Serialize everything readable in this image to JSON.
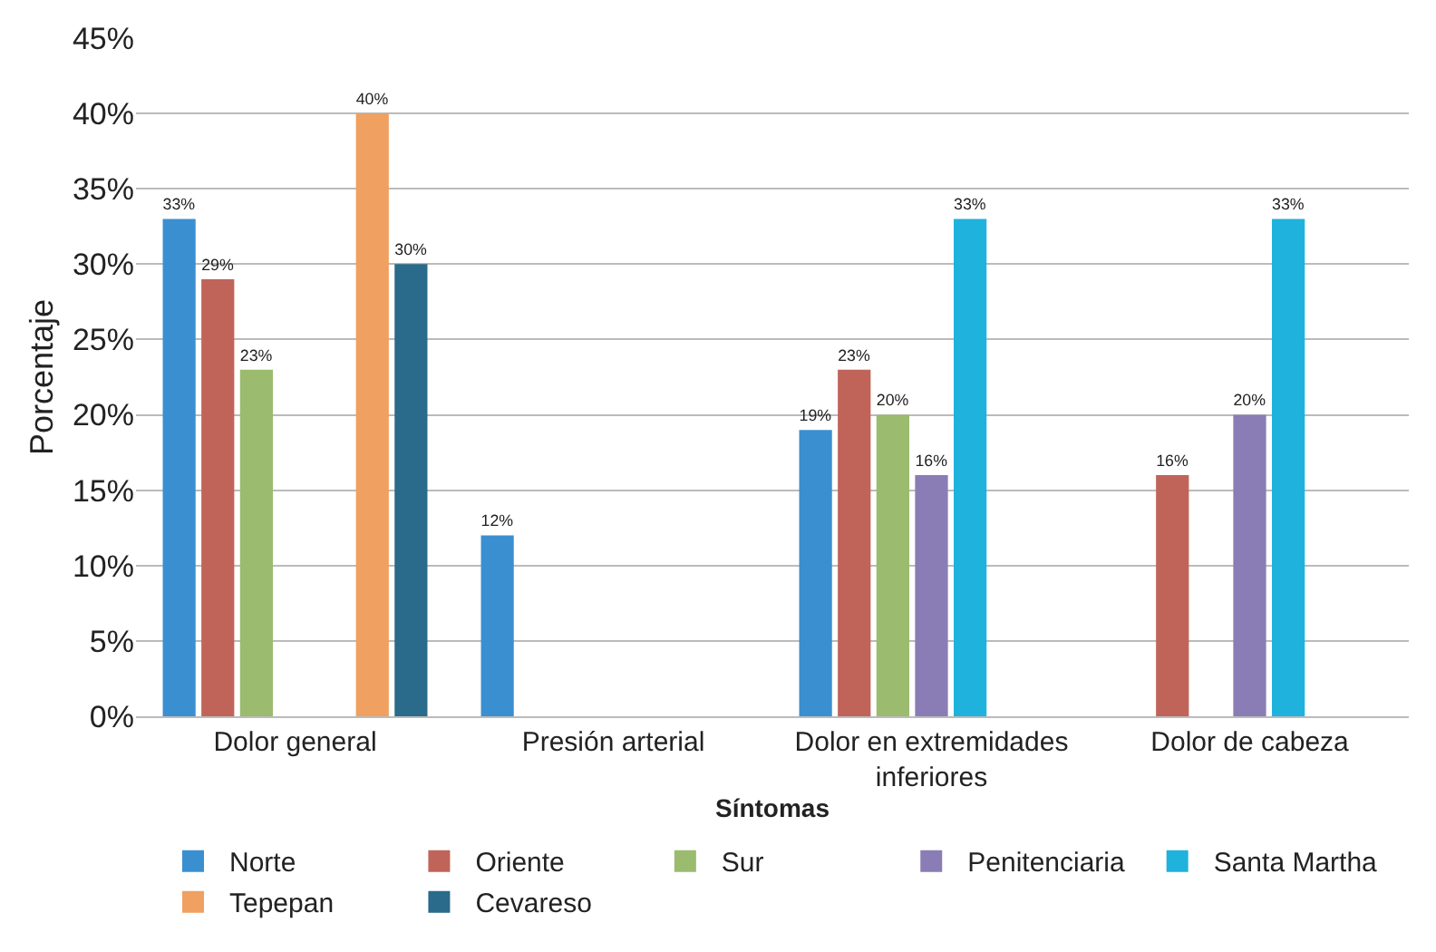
{
  "chart_data": {
    "type": "bar",
    "xlabel": "Síntomas",
    "ylabel": "Porcentaje",
    "categories": [
      "Dolor general",
      "Presión arterial",
      "Dolor en extremidades inferiores",
      "Dolor de cabeza"
    ],
    "series": [
      {
        "name": "Norte",
        "color": "#3a8fd0",
        "values": [
          33,
          12,
          19,
          null
        ],
        "value_labels": [
          "33%",
          "12%",
          "19%",
          null
        ]
      },
      {
        "name": "Oriente",
        "color": "#c0645a",
        "values": [
          29,
          null,
          23,
          16
        ],
        "value_labels": [
          "29%",
          null,
          "23%",
          "16%"
        ]
      },
      {
        "name": "Sur",
        "color": "#9bbb6e",
        "values": [
          23,
          null,
          20,
          null
        ],
        "value_labels": [
          "23%",
          null,
          "20%",
          null
        ]
      },
      {
        "name": "Penitenciaria",
        "color": "#8a7db5",
        "values": [
          null,
          null,
          16,
          20
        ],
        "value_labels": [
          null,
          null,
          "16%",
          "20%"
        ]
      },
      {
        "name": "Santa Martha",
        "color": "#1fb2dd",
        "values": [
          null,
          null,
          33,
          33
        ],
        "value_labels": [
          null,
          null,
          "33%",
          "33%"
        ]
      },
      {
        "name": "Tepepan",
        "color": "#f0a060",
        "values": [
          40,
          null,
          null,
          null
        ],
        "value_labels": [
          "40%",
          null,
          null,
          null
        ]
      },
      {
        "name": "Cevareso",
        "color": "#2a6a8a",
        "values": [
          30,
          null,
          null,
          null
        ],
        "value_labels": [
          "30%",
          null,
          null,
          null
        ]
      }
    ],
    "ylim": [
      0,
      45
    ],
    "yticks": [
      {
        "value": 0,
        "label": "0%"
      },
      {
        "value": 5,
        "label": "5%"
      },
      {
        "value": 10,
        "label": "10%"
      },
      {
        "value": 15,
        "label": "15%"
      },
      {
        "value": 20,
        "label": "20%"
      },
      {
        "value": 25,
        "label": "25%"
      },
      {
        "value": 30,
        "label": "30%"
      },
      {
        "value": 35,
        "label": "35%"
      },
      {
        "value": 40,
        "label": "40%"
      },
      {
        "value": 45,
        "label": "45%"
      }
    ],
    "grid": "y",
    "legend": "bottom"
  }
}
